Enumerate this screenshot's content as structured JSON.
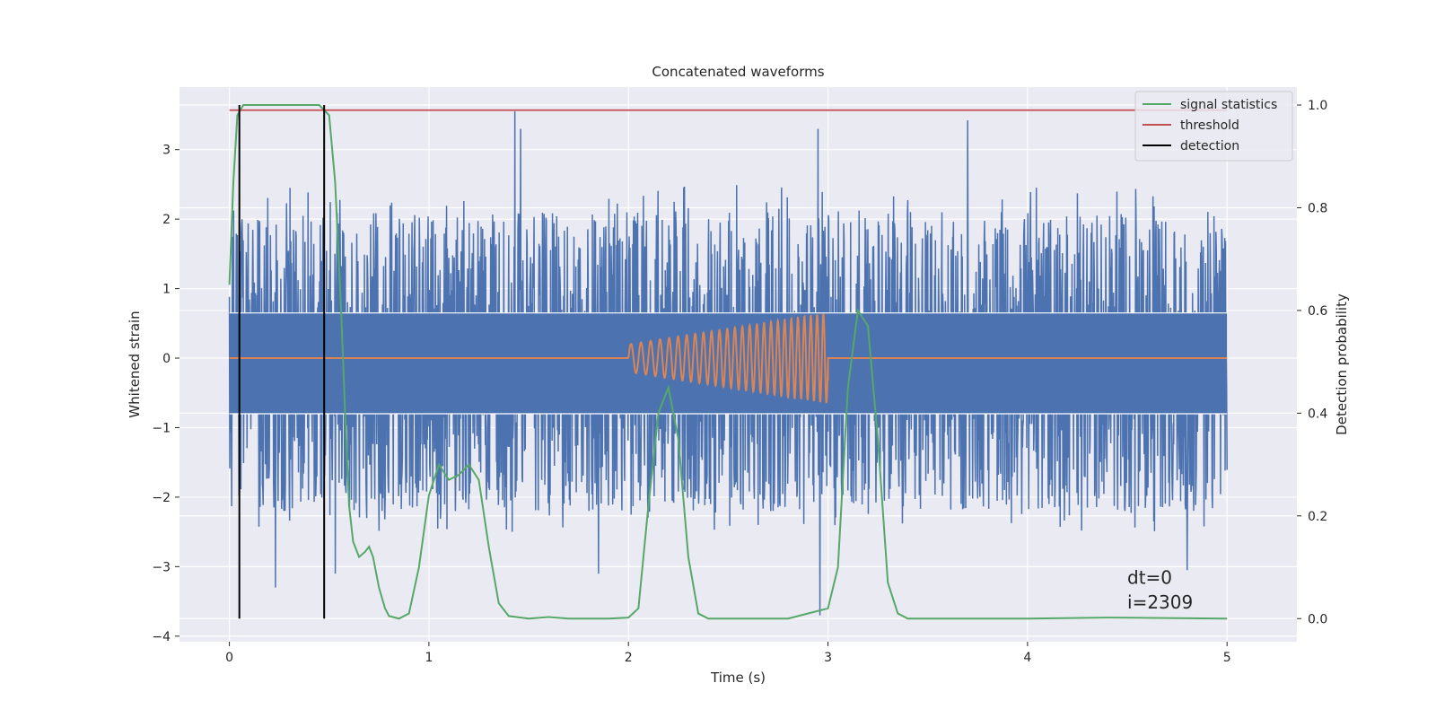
{
  "chart_data": {
    "type": "line",
    "title": "Concatenated waveforms",
    "xlabel": "Time (s)",
    "ylabel": "Whitened strain",
    "ylabel_right": "Detection probability",
    "xlim": [
      -0.25,
      5.35
    ],
    "ylim": [
      -4.08,
      3.9
    ],
    "ylim_right": [
      -0.045,
      1.035
    ],
    "x_ticks": [
      0,
      1,
      2,
      3,
      4,
      5
    ],
    "x_tick_labels": [
      "0",
      "1",
      "2",
      "3",
      "4",
      "5"
    ],
    "y_ticks": [
      -4,
      -3,
      -2,
      -1,
      0,
      1,
      2,
      3
    ],
    "y_tick_labels": [
      "−4",
      "−3",
      "−2",
      "−1",
      "0",
      "1",
      "2",
      "3"
    ],
    "y2_ticks": [
      0,
      0.2,
      0.4,
      0.6,
      0.8,
      1.0
    ],
    "y2_tick_labels": [
      "0.0",
      "0.2",
      "0.4",
      "0.6",
      "0.8",
      "1.0"
    ],
    "grid": true,
    "legend_position": "top-right",
    "series": [
      {
        "name": "",
        "axis": "left",
        "kind": "noise",
        "color": "#4c72b0",
        "x_range": [
          0,
          5
        ],
        "band": [
          -0.8,
          0.65
        ],
        "typical_min": -2.2,
        "typical_max": 2.1,
        "peak_points": [
          {
            "x": 1.43,
            "y": 3.55
          },
          {
            "x": 1.46,
            "y": 3.3
          },
          {
            "x": 2.95,
            "y": 3.3
          },
          {
            "x": 3.7,
            "y": 3.42
          },
          {
            "x": 2.96,
            "y": -3.7
          },
          {
            "x": 0.23,
            "y": -3.3
          },
          {
            "x": 4.8,
            "y": -3.05
          },
          {
            "x": 1.85,
            "y": -3.1
          },
          {
            "x": 0.53,
            "y": -3.1
          }
        ]
      },
      {
        "name": "",
        "axis": "left",
        "kind": "chirp",
        "color": "#dd8452",
        "x_range": [
          0,
          5
        ],
        "chirp_start": 2.0,
        "chirp_end": 3.0,
        "amplitude_start": 0.2,
        "amplitude_end": 0.65,
        "cycles": 26
      },
      {
        "name": "signal statistics",
        "axis": "right",
        "color": "#55a868",
        "x": [
          0,
          0.02,
          0.04,
          0.07,
          0.1,
          0.45,
          0.5,
          0.53,
          0.56,
          0.58,
          0.6,
          0.62,
          0.65,
          0.68,
          0.7,
          0.72,
          0.75,
          0.78,
          0.8,
          0.85,
          0.9,
          0.95,
          1.0,
          1.05,
          1.1,
          1.15,
          1.2,
          1.25,
          1.3,
          1.35,
          1.4,
          1.5,
          1.6,
          1.7,
          1.8,
          1.9,
          2.0,
          2.05,
          2.1,
          2.15,
          2.2,
          2.25,
          2.3,
          2.35,
          2.4,
          2.5,
          2.6,
          2.7,
          2.8,
          2.9,
          2.95,
          3.0,
          3.05,
          3.1,
          3.15,
          3.2,
          3.25,
          3.3,
          3.35,
          3.4,
          3.5,
          4.0,
          4.4,
          5.0
        ],
        "y": [
          0.65,
          0.85,
          0.98,
          1.0,
          1.0,
          1.0,
          0.98,
          0.85,
          0.6,
          0.4,
          0.22,
          0.15,
          0.12,
          0.13,
          0.14,
          0.12,
          0.06,
          0.02,
          0.005,
          0.0,
          0.01,
          0.1,
          0.24,
          0.3,
          0.27,
          0.28,
          0.3,
          0.27,
          0.14,
          0.03,
          0.005,
          0.0,
          0.003,
          0.0,
          0.0,
          0.0,
          0.002,
          0.02,
          0.22,
          0.4,
          0.45,
          0.35,
          0.12,
          0.01,
          0.0,
          0.0,
          0.0,
          0.0,
          0.0,
          0.01,
          0.015,
          0.02,
          0.1,
          0.45,
          0.6,
          0.57,
          0.35,
          0.07,
          0.01,
          0.0,
          0.0,
          0.0,
          0.002,
          0.0
        ]
      },
      {
        "name": "threshold",
        "axis": "right",
        "color": "#c44e52",
        "x": [
          0,
          5
        ],
        "y": [
          0.99,
          0.99
        ]
      },
      {
        "name": "detection",
        "axis": "right",
        "color": "#000000",
        "kind": "vlines",
        "x": [
          0.05,
          0.475
        ],
        "y": [
          0.0,
          1.0
        ]
      }
    ],
    "annotations": [
      {
        "text": "dt=0",
        "x": 4.5,
        "y": -3.25
      },
      {
        "text": "i=2309",
        "x": 4.5,
        "y": -3.6
      }
    ]
  }
}
